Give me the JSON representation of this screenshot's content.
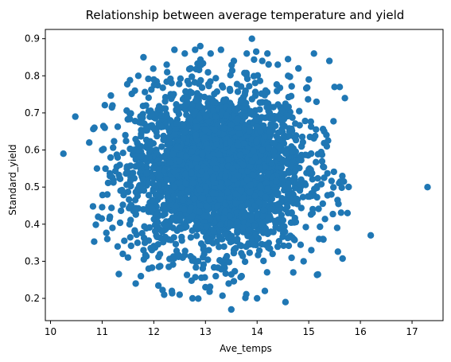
{
  "chart_data": {
    "type": "scatter",
    "title": "Relationship between average temperature and yield",
    "xlabel": "Ave_temps",
    "ylabel": "Standard_yield",
    "xlim": [
      9.9,
      17.6
    ],
    "ylim": [
      0.14,
      0.925
    ],
    "xticks": [
      10,
      11,
      12,
      13,
      14,
      15,
      16,
      17
    ],
    "yticks": [
      0.2,
      0.3,
      0.4,
      0.5,
      0.6,
      0.7,
      0.8,
      0.9
    ],
    "grid": false,
    "legend": "none",
    "marker_color": "#1f77b4",
    "series": [
      {
        "points_note_count": 3000,
        "x": [
          10.25,
          10.48,
          10.75,
          10.85,
          10.9,
          11.0,
          11.05,
          11.1,
          11.1,
          11.15,
          11.15,
          11.2,
          11.2,
          11.3,
          11.3,
          11.4,
          11.45,
          11.5,
          11.55,
          11.6,
          11.65,
          11.7,
          11.75,
          11.8,
          11.85,
          11.9,
          12.0,
          12.2,
          12.25,
          12.3,
          12.35,
          12.4,
          12.5,
          12.6,
          12.75,
          12.8,
          12.9,
          13.0,
          13.1,
          13.2,
          13.3,
          13.45,
          13.5,
          13.55,
          13.7,
          13.8,
          13.9,
          14.0,
          14.1,
          14.15,
          14.2,
          14.3,
          14.4,
          14.55,
          14.6,
          14.7,
          14.8,
          14.9,
          15.0,
          15.05,
          15.1,
          15.15,
          15.2,
          15.3,
          15.35,
          15.4,
          15.5,
          15.55,
          15.6,
          15.65,
          15.7,
          15.75,
          16.2,
          17.3,
          11.8,
          13.55,
          12.4,
          14.6,
          13.2,
          14.1,
          12.9,
          13.9,
          12.5,
          13.3
        ],
        "y": [
          0.59,
          0.69,
          0.62,
          0.66,
          0.55,
          0.6,
          0.66,
          0.48,
          0.36,
          0.53,
          0.42,
          0.72,
          0.39,
          0.58,
          0.34,
          0.32,
          0.64,
          0.31,
          0.45,
          0.6,
          0.24,
          0.8,
          0.26,
          0.85,
          0.72,
          0.28,
          0.79,
          0.21,
          0.83,
          0.62,
          0.22,
          0.87,
          0.21,
          0.86,
          0.2,
          0.87,
          0.88,
          0.23,
          0.86,
          0.26,
          0.87,
          0.24,
          0.17,
          0.84,
          0.26,
          0.86,
          0.9,
          0.2,
          0.84,
          0.22,
          0.86,
          0.32,
          0.83,
          0.19,
          0.8,
          0.27,
          0.82,
          0.3,
          0.79,
          0.33,
          0.86,
          0.73,
          0.36,
          0.65,
          0.61,
          0.84,
          0.77,
          0.39,
          0.77,
          0.53,
          0.74,
          0.43,
          0.37,
          0.5,
          0.33,
          0.52,
          0.5,
          0.48,
          0.55,
          0.6,
          0.45,
          0.42,
          0.57,
          0.5
        ]
      }
    ]
  }
}
